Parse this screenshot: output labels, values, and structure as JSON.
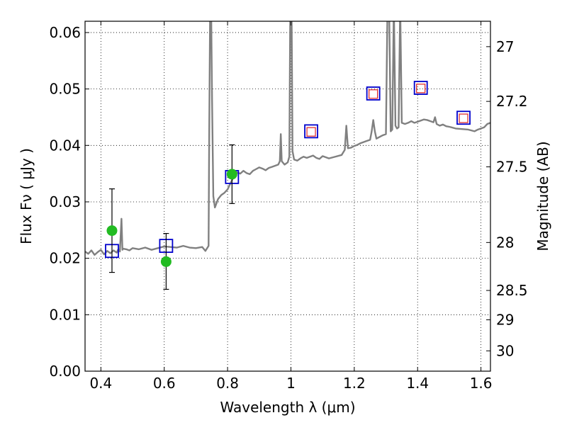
{
  "chart_data": {
    "type": "line",
    "xlabel": "Wavelength  λ (μm)",
    "ylabel": "Flux  Fν  ( μJy )",
    "ylabel_right": "Magnitude (AB)",
    "xlim": [
      0.35,
      1.63
    ],
    "ylim": [
      0.0,
      0.062
    ],
    "grid": true,
    "x_ticks": [
      0.4,
      0.6,
      0.8,
      1.0,
      1.2,
      1.4,
      1.6
    ],
    "x_tick_labels": [
      "0.4",
      "0.6",
      "0.8",
      "1",
      "1.2",
      "1.4",
      "1.6"
    ],
    "y_ticks": [
      0.0,
      0.01,
      0.02,
      0.03,
      0.04,
      0.05,
      0.06
    ],
    "y_tick_labels": [
      "0.00",
      "0.01",
      "0.02",
      "0.03",
      "0.04",
      "0.05",
      "0.06"
    ],
    "right_ticks": [
      {
        "label": "27",
        "flux": 0.0575
      },
      {
        "label": "27.2",
        "flux": 0.0478
      },
      {
        "label": "27.5",
        "flux": 0.0362
      },
      {
        "label": "28",
        "flux": 0.0228
      },
      {
        "label": "28.5",
        "flux": 0.0143
      },
      {
        "label": "29",
        "flux": 0.0091
      },
      {
        "label": "30",
        "flux": 0.0036
      }
    ],
    "series": [
      {
        "kind": "model_spectrum",
        "color": "#808080",
        "points": [
          [
            0.35,
            0.0212
          ],
          [
            0.36,
            0.0208
          ],
          [
            0.37,
            0.0214
          ],
          [
            0.38,
            0.0206
          ],
          [
            0.39,
            0.0211
          ],
          [
            0.4,
            0.0215
          ],
          [
            0.41,
            0.0207
          ],
          [
            0.42,
            0.0213
          ],
          [
            0.43,
            0.0209
          ],
          [
            0.44,
            0.0214
          ],
          [
            0.45,
            0.021
          ],
          [
            0.455,
            0.0216
          ],
          [
            0.46,
            0.0212
          ],
          [
            0.465,
            0.027
          ],
          [
            0.468,
            0.0215
          ],
          [
            0.47,
            0.0217
          ],
          [
            0.48,
            0.0216
          ],
          [
            0.49,
            0.0214
          ],
          [
            0.5,
            0.0218
          ],
          [
            0.52,
            0.0216
          ],
          [
            0.54,
            0.0219
          ],
          [
            0.56,
            0.0215
          ],
          [
            0.58,
            0.0218
          ],
          [
            0.6,
            0.0221
          ],
          [
            0.62,
            0.022
          ],
          [
            0.64,
            0.0219
          ],
          [
            0.66,
            0.0222
          ],
          [
            0.68,
            0.0219
          ],
          [
            0.7,
            0.0218
          ],
          [
            0.72,
            0.022
          ],
          [
            0.73,
            0.0213
          ],
          [
            0.74,
            0.0222
          ],
          [
            0.742,
            0.042
          ],
          [
            0.745,
            0.065
          ],
          [
            0.748,
            0.065
          ],
          [
            0.751,
            0.048
          ],
          [
            0.755,
            0.031
          ],
          [
            0.76,
            0.029
          ],
          [
            0.77,
            0.0305
          ],
          [
            0.78,
            0.0312
          ],
          [
            0.79,
            0.0316
          ],
          [
            0.8,
            0.0322
          ],
          [
            0.81,
            0.0334
          ],
          [
            0.82,
            0.0345
          ],
          [
            0.83,
            0.0352
          ],
          [
            0.84,
            0.035
          ],
          [
            0.85,
            0.0355
          ],
          [
            0.86,
            0.0351
          ],
          [
            0.87,
            0.0349
          ],
          [
            0.88,
            0.0355
          ],
          [
            0.89,
            0.0358
          ],
          [
            0.9,
            0.0361
          ],
          [
            0.91,
            0.0359
          ],
          [
            0.92,
            0.0356
          ],
          [
            0.93,
            0.036
          ],
          [
            0.94,
            0.0362
          ],
          [
            0.95,
            0.0364
          ],
          [
            0.96,
            0.0366
          ],
          [
            0.965,
            0.0372
          ],
          [
            0.968,
            0.042
          ],
          [
            0.971,
            0.0372
          ],
          [
            0.98,
            0.0366
          ],
          [
            0.99,
            0.037
          ],
          [
            0.995,
            0.038
          ],
          [
            0.998,
            0.065
          ],
          [
            1.002,
            0.065
          ],
          [
            1.005,
            0.039
          ],
          [
            1.01,
            0.0375
          ],
          [
            1.02,
            0.0373
          ],
          [
            1.03,
            0.0377
          ],
          [
            1.04,
            0.038
          ],
          [
            1.05,
            0.0378
          ],
          [
            1.06,
            0.038
          ],
          [
            1.07,
            0.0382
          ],
          [
            1.08,
            0.0378
          ],
          [
            1.09,
            0.0376
          ],
          [
            1.1,
            0.0381
          ],
          [
            1.12,
            0.0377
          ],
          [
            1.14,
            0.038
          ],
          [
            1.16,
            0.0383
          ],
          [
            1.17,
            0.0392
          ],
          [
            1.175,
            0.0435
          ],
          [
            1.18,
            0.0395
          ],
          [
            1.19,
            0.0396
          ],
          [
            1.2,
            0.0399
          ],
          [
            1.21,
            0.0401
          ],
          [
            1.22,
            0.0404
          ],
          [
            1.23,
            0.0406
          ],
          [
            1.24,
            0.0408
          ],
          [
            1.25,
            0.041
          ],
          [
            1.255,
            0.0425
          ],
          [
            1.26,
            0.0445
          ],
          [
            1.265,
            0.0425
          ],
          [
            1.27,
            0.0412
          ],
          [
            1.28,
            0.0415
          ],
          [
            1.29,
            0.0418
          ],
          [
            1.3,
            0.042
          ],
          [
            1.305,
            0.065
          ],
          [
            1.31,
            0.065
          ],
          [
            1.315,
            0.0425
          ],
          [
            1.32,
            0.0428
          ],
          [
            1.325,
            0.065
          ],
          [
            1.33,
            0.0435
          ],
          [
            1.335,
            0.043
          ],
          [
            1.34,
            0.0432
          ],
          [
            1.345,
            0.065
          ],
          [
            1.35,
            0.044
          ],
          [
            1.36,
            0.0438
          ],
          [
            1.37,
            0.044
          ],
          [
            1.38,
            0.0443
          ],
          [
            1.39,
            0.044
          ],
          [
            1.4,
            0.0442
          ],
          [
            1.41,
            0.0444
          ],
          [
            1.42,
            0.0446
          ],
          [
            1.43,
            0.0445
          ],
          [
            1.44,
            0.0443
          ],
          [
            1.45,
            0.0441
          ],
          [
            1.455,
            0.045
          ],
          [
            1.46,
            0.0438
          ],
          [
            1.47,
            0.0435
          ],
          [
            1.48,
            0.0437
          ],
          [
            1.49,
            0.0434
          ],
          [
            1.5,
            0.0433
          ],
          [
            1.52,
            0.043
          ],
          [
            1.54,
            0.0429
          ],
          [
            1.56,
            0.0428
          ],
          [
            1.58,
            0.0425
          ],
          [
            1.59,
            0.0428
          ],
          [
            1.6,
            0.043
          ],
          [
            1.61,
            0.0432
          ],
          [
            1.62,
            0.0438
          ],
          [
            1.63,
            0.044
          ]
        ]
      },
      {
        "kind": "model_photometry",
        "marker": "square",
        "color": "#0000cc",
        "points": [
          [
            0.435,
            0.0213
          ],
          [
            0.606,
            0.0222
          ],
          [
            0.814,
            0.0344
          ],
          [
            1.064,
            0.0425
          ],
          [
            1.26,
            0.0492
          ],
          [
            1.41,
            0.0502
          ],
          [
            1.545,
            0.0449
          ]
        ]
      },
      {
        "kind": "upper_points",
        "marker": "square",
        "color": "#dd2222",
        "points": [
          [
            1.064,
            0.0424
          ],
          [
            1.26,
            0.0491
          ],
          [
            1.41,
            0.0501
          ],
          [
            1.545,
            0.0448
          ]
        ]
      },
      {
        "kind": "observed",
        "marker": "circle",
        "color": "#22bb22",
        "points": [
          {
            "x": 0.435,
            "y": 0.0249,
            "err_low": 0.0175,
            "err_high": 0.0323
          },
          {
            "x": 0.606,
            "y": 0.0194,
            "err_low": 0.0145,
            "err_high": 0.0244
          },
          {
            "x": 0.814,
            "y": 0.0349,
            "err_low": 0.0297,
            "err_high": 0.0401
          }
        ]
      }
    ]
  }
}
